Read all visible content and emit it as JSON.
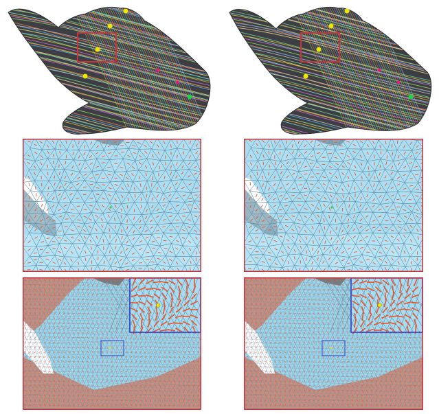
{
  "figure": {
    "columns": [
      "left",
      "right"
    ],
    "rows": [
      "hand-streamlines",
      "mesh-closeup",
      "dense-field-closeup"
    ]
  },
  "colors": {
    "frame_red": "#d0323a",
    "inset_blue": "#2b3fcc",
    "mesh_fill": "#a9dcf0",
    "mesh_edge": "#5f8fa8",
    "arrow_orange": "#e8552a",
    "hand_base": "#3d3d44",
    "singularity_yellow": "#f2e600",
    "singularity_green": "#1fd04a",
    "singularity_magenta": "#e0207a"
  },
  "icons": {
    "singularity_markers": "circle",
    "field_glyphs": "arrow"
  }
}
